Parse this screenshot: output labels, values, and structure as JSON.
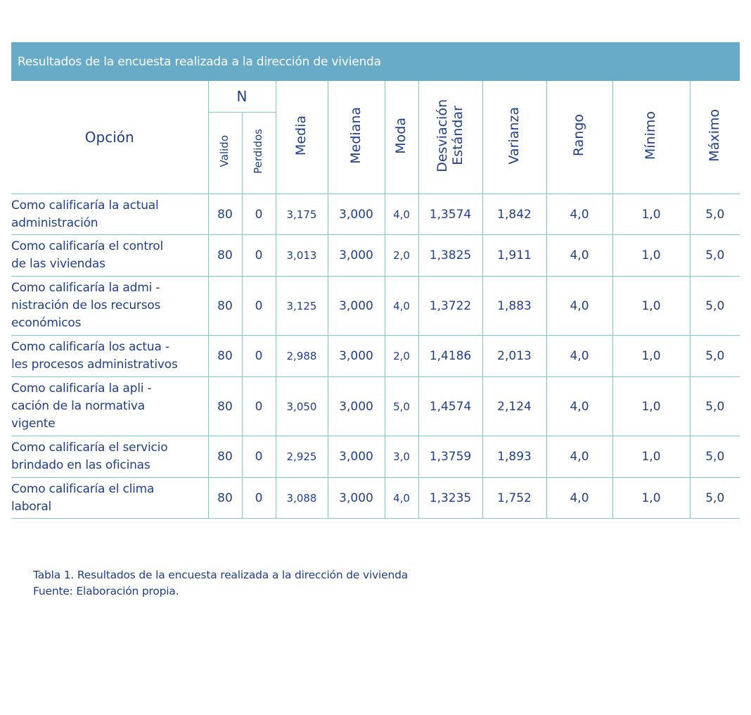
{
  "title": "Resultados de la encuesta realizada a la dirección de vivienda",
  "headers": {
    "opcion": "Opción",
    "n": "N",
    "valido": "Valido",
    "perdidos": "Perdidos",
    "media": "Media",
    "mediana": "Mediana",
    "moda": "Moda",
    "desviacion_1": "Desviación",
    "desviacion_2": "Estándar",
    "varianza": "Varianza",
    "rango": "Rango",
    "minimo": "Mínimo",
    "maximo": "Máximo"
  },
  "rows": [
    {
      "opcion": [
        "Como calificaría la actual",
        "administración"
      ],
      "valido": "80",
      "perdidos": "0",
      "media": "3,175",
      "mediana": "3,000",
      "moda": "4,0",
      "desviacion": "1,3574",
      "varianza": "1,842",
      "rango": "4,0",
      "minimo": "1,0",
      "maximo": "5,0"
    },
    {
      "opcion": [
        "Como calificaría el control",
        "de las viviendas"
      ],
      "valido": "80",
      "perdidos": "0",
      "media": "3,013",
      "mediana": "3,000",
      "moda": "2,0",
      "desviacion": "1,3825",
      "varianza": "1,911",
      "rango": "4,0",
      "minimo": "1,0",
      "maximo": "5,0"
    },
    {
      "opcion": [
        "Como calificaría la admi  -",
        "nistración de los recursos",
        "económicos"
      ],
      "valido": "80",
      "perdidos": "0",
      "media": "3,125",
      "mediana": "3,000",
      "moda": "4,0",
      "desviacion": "1,3722",
      "varianza": "1,883",
      "rango": "4,0",
      "minimo": "1,0",
      "maximo": "5,0"
    },
    {
      "opcion": [
        "Como calificaría los actua  -",
        "les procesos administrativos"
      ],
      "valido": "80",
      "perdidos": "0",
      "media": "2,988",
      "mediana": "3,000",
      "moda": "2,0",
      "desviacion": "1,4186",
      "varianza": "2,013",
      "rango": "4,0",
      "minimo": "1,0",
      "maximo": "5,0"
    },
    {
      "opcion": [
        "Como calificaría la apli   -",
        "cación de la normativa",
        "vigente"
      ],
      "valido": "80",
      "perdidos": "0",
      "media": "3,050",
      "mediana": "3,000",
      "moda": "5,0",
      "desviacion": "1,4574",
      "varianza": "2,124",
      "rango": "4,0",
      "minimo": "1,0",
      "maximo": "5,0"
    },
    {
      "opcion": [
        "Como calificaría el servicio",
        "brindado en las oficinas"
      ],
      "valido": "80",
      "perdidos": "0",
      "media": "2,925",
      "mediana": "3,000",
      "moda": "3,0",
      "desviacion": "1,3759",
      "varianza": "1,893",
      "rango": "4,0",
      "minimo": "1,0",
      "maximo": "5,0"
    },
    {
      "opcion": [
        "Como calificaría el clima",
        "laboral"
      ],
      "valido": "80",
      "perdidos": "0",
      "media": "3,088",
      "mediana": "3,000",
      "moda": "4,0",
      "desviacion": "1,3235",
      "varianza": "1,752",
      "rango": "4,0",
      "minimo": "1,0",
      "maximo": "5,0"
    }
  ],
  "caption": {
    "line1": "Tabla 1.  Resultados de la encuesta realizada a la dirección de vivienda",
    "line2": "Fuente: Elaboración propia."
  },
  "colors": {
    "banner": "#67abc8",
    "grid": "#7dc6d2",
    "text": "#1f3f8a"
  }
}
